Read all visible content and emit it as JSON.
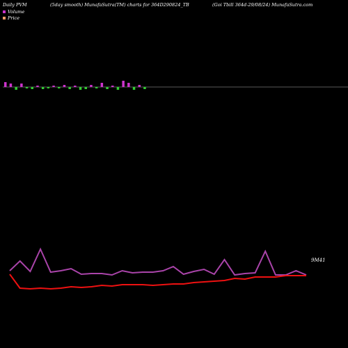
{
  "header": {
    "left": "Daily PVM",
    "middle": "(5day smooth) MunafaSutra(TM) charts for 364D290824_TB",
    "right": "(Goi  Tbill 364d-29/08/24) MunafaSutra.com"
  },
  "legend": [
    {
      "label": "Volume",
      "color": "#cc33cc"
    },
    {
      "label": "Price",
      "color": "#ff9966"
    }
  ],
  "colors": {
    "background": "#000000",
    "volume_line": "#aa44aa",
    "price_line": "#ee1111",
    "volume_up": "#cc33cc",
    "volume_down": "#33cc33",
    "baseline": "#ffffff"
  },
  "end_label": "9M41",
  "chart_data": {
    "type": "line",
    "series": [
      {
        "name": "Volume",
        "values": [
          60,
          74,
          59,
          91,
          58,
          60,
          63,
          55,
          56,
          56,
          54,
          60,
          57,
          58,
          58,
          60,
          66,
          55,
          59,
          62,
          55,
          76,
          54,
          56,
          57,
          88,
          54,
          54,
          60,
          54
        ]
      },
      {
        "name": "Price",
        "values": [
          55,
          35,
          34,
          35,
          34,
          35,
          37,
          36,
          37,
          39,
          38,
          40,
          40,
          40,
          39,
          40,
          41,
          41,
          43,
          44,
          45,
          46,
          49,
          48,
          51,
          51,
          51,
          53,
          53,
          53
        ]
      }
    ],
    "volume_bars": [
      {
        "value": 3.5,
        "dir": "up"
      },
      {
        "value": 2.5,
        "dir": "up"
      },
      {
        "value": 2,
        "dir": "down"
      },
      {
        "value": 2.5,
        "dir": "up"
      },
      {
        "value": 1,
        "dir": "down"
      },
      {
        "value": 1.5,
        "dir": "down"
      },
      {
        "value": 1,
        "dir": "up"
      },
      {
        "value": 1.5,
        "dir": "down"
      },
      {
        "value": 1,
        "dir": "down"
      },
      {
        "value": 1,
        "dir": "up"
      },
      {
        "value": 1,
        "dir": "down"
      },
      {
        "value": 1.5,
        "dir": "up"
      },
      {
        "value": 1.5,
        "dir": "down"
      },
      {
        "value": 1,
        "dir": "up"
      },
      {
        "value": 2,
        "dir": "down"
      },
      {
        "value": 1.5,
        "dir": "down"
      },
      {
        "value": 1.5,
        "dir": "up"
      },
      {
        "value": 1,
        "dir": "down"
      },
      {
        "value": 3,
        "dir": "up"
      },
      {
        "value": 1.5,
        "dir": "down"
      },
      {
        "value": 1,
        "dir": "up"
      },
      {
        "value": 2,
        "dir": "down"
      },
      {
        "value": 4.5,
        "dir": "up"
      },
      {
        "value": 3,
        "dir": "up"
      },
      {
        "value": 2,
        "dir": "down"
      },
      {
        "value": 1.5,
        "dir": "up"
      },
      {
        "value": 1.5,
        "dir": "down"
      }
    ]
  }
}
